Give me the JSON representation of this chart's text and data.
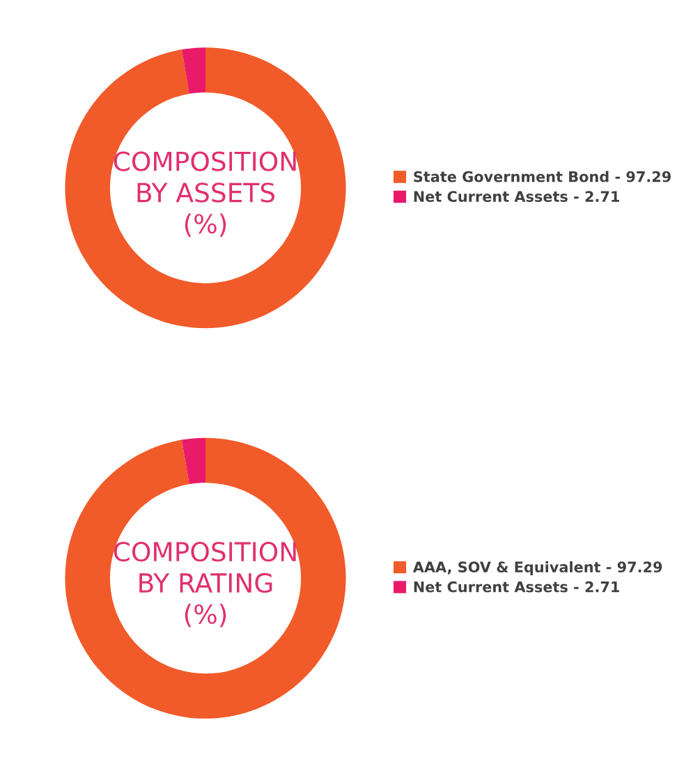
{
  "chart_data": [
    {
      "type": "donut",
      "title": "COMPOSITION\nBY ASSETS\n(%)",
      "categories": [
        "State Government Bond - 97.29",
        "Net Current Assets - 2.71"
      ],
      "values": [
        97.29,
        2.71
      ],
      "colors": [
        "#f15a29",
        "#ea1a6b"
      ],
      "legend": "right"
    },
    {
      "type": "donut",
      "title": "COMPOSITION\nBY RATING\n(%)",
      "categories": [
        "AAA, SOV & Equivalent - 97.29",
        "Net Current Assets - 2.71"
      ],
      "values": [
        97.29,
        2.71
      ],
      "colors": [
        "#f15a29",
        "#ea1a6b"
      ],
      "legend": "right"
    }
  ]
}
